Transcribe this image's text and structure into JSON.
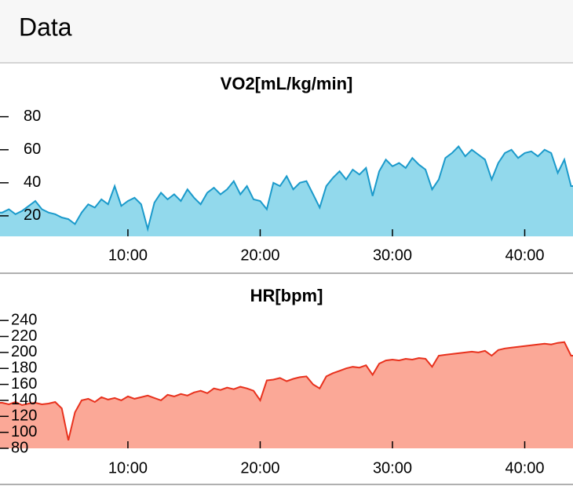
{
  "header": {
    "title": "Data"
  },
  "chart_data": [
    {
      "type": "area",
      "title": "VO2[mL/kg/min]",
      "x": [
        0.5,
        1,
        1.5,
        2,
        2.5,
        3,
        3.5,
        4,
        4.5,
        5,
        5.5,
        6,
        6.5,
        7,
        7.5,
        8,
        8.5,
        9,
        9.5,
        10,
        10.5,
        11,
        11.5,
        12,
        12.5,
        13,
        13.5,
        14,
        14.5,
        15,
        15.5,
        16,
        16.5,
        17,
        17.5,
        18,
        18.5,
        19,
        19.5,
        20,
        20.5,
        21,
        21.5,
        22,
        22.5,
        23,
        23.5,
        24,
        24.5,
        25,
        25.5,
        26,
        26.5,
        27,
        27.5,
        28,
        28.5,
        29,
        29.5,
        30,
        30.5,
        31,
        31.5,
        32,
        32.5,
        33,
        33.5,
        34,
        34.5,
        35,
        35.5,
        36,
        36.5,
        37,
        37.5,
        38,
        38.5,
        39,
        39.5,
        40,
        40.5,
        41,
        41.5,
        42,
        42.5,
        43,
        43.5
      ],
      "values": [
        22,
        24,
        21,
        23,
        26,
        29,
        24,
        22,
        21,
        19,
        18,
        15,
        22,
        27,
        25,
        30,
        27,
        38,
        26,
        29,
        31,
        27,
        12,
        28,
        34,
        30,
        33,
        29,
        36,
        31,
        27,
        34,
        37,
        33,
        36,
        41,
        33,
        38,
        30,
        29,
        24,
        40,
        38,
        44,
        36,
        40,
        41,
        33,
        25,
        38,
        43,
        47,
        42,
        48,
        45,
        49,
        32,
        47,
        54,
        50,
        52,
        49,
        55,
        51,
        48,
        36,
        42,
        55,
        58,
        62,
        56,
        60,
        57,
        54,
        42,
        52,
        58,
        60,
        55,
        58,
        59,
        56,
        60,
        58,
        46,
        54,
        38
      ],
      "line_color": "#1b9acb",
      "fill_color": "#92d9ec",
      "xlim": [
        0.33,
        43.65
      ],
      "xticks": [
        {
          "value": 10,
          "label": "10:00"
        },
        {
          "value": 20,
          "label": "20:00"
        },
        {
          "value": 30,
          "label": "30:00"
        },
        {
          "value": 40,
          "label": "40:00"
        }
      ],
      "ylim": [
        7.6,
        86
      ],
      "yticks": [
        20,
        40,
        60,
        80
      ]
    },
    {
      "type": "area",
      "title": "HR[bpm]",
      "x": [
        0.5,
        1,
        1.5,
        2,
        2.5,
        3,
        3.5,
        4,
        4.5,
        5,
        5.5,
        6,
        6.5,
        7,
        7.5,
        8,
        8.5,
        9,
        9.5,
        10,
        10.5,
        11,
        11.5,
        12,
        12.5,
        13,
        13.5,
        14,
        14.5,
        15,
        15.5,
        16,
        16.5,
        17,
        17.5,
        18,
        18.5,
        19,
        19.5,
        20,
        20.5,
        21,
        21.5,
        22,
        22.5,
        23,
        23.5,
        24,
        24.5,
        25,
        25.5,
        26,
        26.5,
        27,
        27.5,
        28,
        28.5,
        29,
        29.5,
        30,
        30.5,
        31,
        31.5,
        32,
        32.5,
        33,
        33.5,
        34,
        34.5,
        35,
        35.5,
        36,
        36.5,
        37,
        37.5,
        38,
        38.5,
        39,
        39.5,
        40,
        40.5,
        41,
        41.5,
        42,
        42.5,
        43,
        43.5
      ],
      "values": [
        137,
        135,
        138,
        134,
        136,
        137,
        135,
        136,
        138,
        130,
        90,
        125,
        140,
        142,
        138,
        144,
        141,
        143,
        140,
        145,
        142,
        144,
        146,
        143,
        140,
        147,
        145,
        148,
        146,
        150,
        152,
        149,
        155,
        153,
        156,
        154,
        157,
        155,
        152,
        140,
        165,
        166,
        168,
        164,
        167,
        169,
        170,
        160,
        155,
        170,
        174,
        177,
        180,
        182,
        181,
        184,
        172,
        186,
        190,
        191,
        190,
        192,
        191,
        193,
        192,
        182,
        196,
        197,
        198,
        199,
        200,
        201,
        200,
        202,
        196,
        203,
        205,
        206,
        207,
        208,
        209,
        210,
        211,
        210,
        212,
        213,
        196
      ],
      "line_color": "#e8311d",
      "fill_color": "#fba897",
      "xlim": [
        0.33,
        43.65
      ],
      "xticks": [
        {
          "value": 10,
          "label": "10:00"
        },
        {
          "value": 20,
          "label": "20:00"
        },
        {
          "value": 30,
          "label": "30:00"
        },
        {
          "value": 40,
          "label": "40:00"
        }
      ],
      "ylim": [
        80,
        250
      ],
      "yticks": [
        80,
        100,
        120,
        140,
        160,
        180,
        200,
        220,
        240
      ]
    }
  ]
}
